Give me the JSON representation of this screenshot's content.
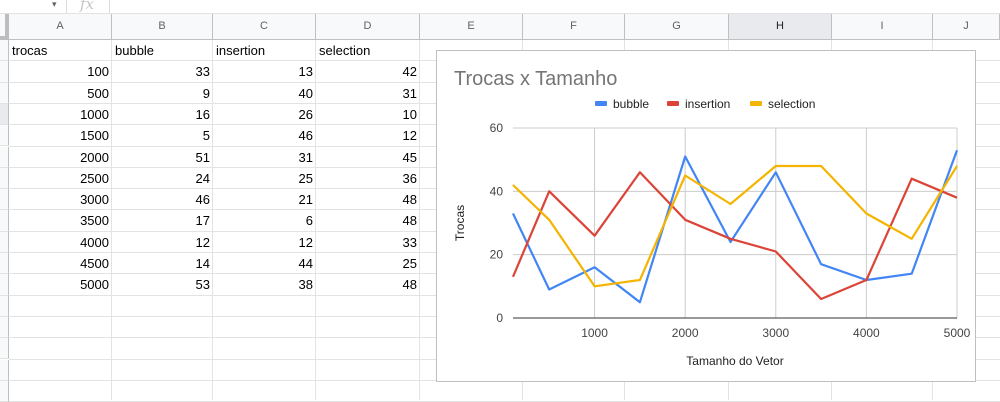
{
  "formula_bar": {
    "fx_symbol": "fx",
    "dropdown_icon": "caret-down-icon"
  },
  "columns": [
    "A",
    "B",
    "C",
    "D",
    "E",
    "F",
    "G",
    "H",
    "I",
    "J"
  ],
  "selected_column": "H",
  "selected_row": 4,
  "sheet": {
    "headers": [
      "trocas",
      "bubble",
      "insertion",
      "selection"
    ],
    "rows": [
      [
        100,
        33,
        13,
        42
      ],
      [
        500,
        9,
        40,
        31
      ],
      [
        1000,
        16,
        26,
        10
      ],
      [
        1500,
        5,
        46,
        12
      ],
      [
        2000,
        51,
        31,
        45
      ],
      [
        2500,
        24,
        25,
        36
      ],
      [
        3000,
        46,
        21,
        48
      ],
      [
        3500,
        17,
        6,
        48
      ],
      [
        4000,
        12,
        12,
        33
      ],
      [
        4500,
        14,
        44,
        25
      ],
      [
        5000,
        53,
        38,
        48
      ]
    ]
  },
  "chart_data": {
    "type": "line",
    "title": "Trocas x Tamanho",
    "xlabel": "Tamanho do Vetor",
    "ylabel": "Trocas",
    "x": [
      100,
      500,
      1000,
      1500,
      2000,
      2500,
      3000,
      3500,
      4000,
      4500,
      5000
    ],
    "xlim": [
      100,
      5000
    ],
    "ylim": [
      0,
      60
    ],
    "x_ticks": [
      1000,
      2000,
      3000,
      4000,
      5000
    ],
    "y_ticks": [
      0,
      20,
      40,
      60
    ],
    "grid": true,
    "legend_position": "top",
    "series": [
      {
        "name": "bubble",
        "color": "#4285f4",
        "values": [
          33,
          9,
          16,
          5,
          51,
          24,
          46,
          17,
          12,
          14,
          53
        ]
      },
      {
        "name": "insertion",
        "color": "#db4437",
        "values": [
          13,
          40,
          26,
          46,
          31,
          25,
          21,
          6,
          12,
          44,
          38
        ]
      },
      {
        "name": "selection",
        "color": "#f4b400",
        "values": [
          42,
          31,
          10,
          12,
          45,
          36,
          48,
          48,
          33,
          25,
          48
        ]
      }
    ]
  }
}
